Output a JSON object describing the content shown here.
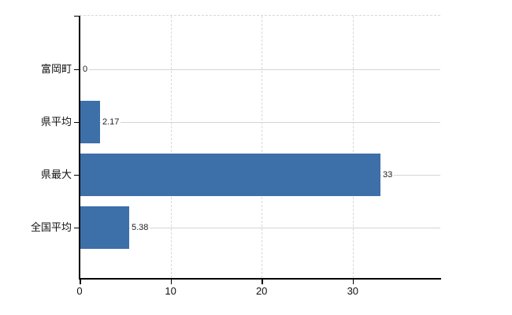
{
  "chart": {
    "background_color": "#ffffff",
    "bar_color": "#3d6fa9",
    "axis_color": "#000000",
    "h_gridline_color": "#d4d4d4",
    "v_gridline_color": "#d9d9d9",
    "value_label_color": "#222222"
  },
  "chart_data": {
    "type": "bar",
    "orientation": "horizontal",
    "title": "",
    "xlabel": "",
    "ylabel": "",
    "categories": [
      "富岡町",
      "県平均",
      "県最大",
      "全国平均"
    ],
    "values": [
      0,
      2.17,
      33,
      5.38
    ],
    "value_labels": [
      "0",
      "2.17",
      "33",
      "5.38"
    ],
    "x_ticks": [
      0,
      10,
      20,
      30
    ],
    "x_tick_labels": [
      "0",
      "10",
      "20",
      "30"
    ],
    "xlim": [
      0,
      39.6
    ],
    "grid": true,
    "legend": false,
    "data_labels": true
  }
}
